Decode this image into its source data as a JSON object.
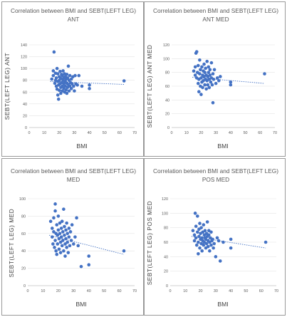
{
  "chart_data": [
    {
      "type": "scatter",
      "title": "Correlation between BMI and SEBT(LEFT LEG)",
      "subtitle": "ANT",
      "xlabel": "BMI",
      "ylabel": "SEBT(LEFT LEG) ANT",
      "xlim": [
        0,
        70
      ],
      "ylim": [
        0,
        140
      ],
      "xticks": [
        0,
        10,
        20,
        30,
        40,
        50,
        60,
        70
      ],
      "yticks": [
        0,
        20,
        40,
        60,
        80,
        100,
        120,
        140
      ],
      "point_color": "#4472c4",
      "trendline": {
        "style": "dotted",
        "x": [
          14,
          63
        ],
        "y": [
          78,
          73
        ]
      },
      "points": [
        [
          15,
          82
        ],
        [
          16,
          88
        ],
        [
          16,
          96
        ],
        [
          16.5,
          128
        ],
        [
          17,
          75
        ],
        [
          17.5,
          80
        ],
        [
          17.5,
          92
        ],
        [
          18,
          70
        ],
        [
          18,
          84
        ],
        [
          18.5,
          100
        ],
        [
          18.5,
          65
        ],
        [
          19,
          78
        ],
        [
          19,
          55
        ],
        [
          19,
          91
        ],
        [
          19.5,
          48
        ],
        [
          19.5,
          72
        ],
        [
          20,
          80
        ],
        [
          20,
          86
        ],
        [
          20,
          63
        ],
        [
          20.5,
          95
        ],
        [
          20.5,
          74
        ],
        [
          21,
          68
        ],
        [
          21,
          83
        ],
        [
          21,
          58
        ],
        [
          21.5,
          90
        ],
        [
          21.5,
          76
        ],
        [
          22,
          70
        ],
        [
          22,
          88
        ],
        [
          22,
          62
        ],
        [
          22.5,
          80
        ],
        [
          22.5,
          96
        ],
        [
          23,
          74
        ],
        [
          23,
          66
        ],
        [
          23,
          84
        ],
        [
          23.5,
          91
        ],
        [
          23.5,
          60
        ],
        [
          24,
          78
        ],
        [
          24,
          86
        ],
        [
          24,
          70
        ],
        [
          24.5,
          64
        ],
        [
          24.5,
          82
        ],
        [
          25,
          75
        ],
        [
          25,
          90
        ],
        [
          25,
          58
        ],
        [
          25.5,
          68
        ],
        [
          25.5,
          84
        ],
        [
          26,
          73
        ],
        [
          26,
          104
        ],
        [
          26.5,
          80
        ],
        [
          26.5,
          62
        ],
        [
          27,
          88
        ],
        [
          27,
          70
        ],
        [
          27.5,
          76
        ],
        [
          28,
          66
        ],
        [
          28,
          82
        ],
        [
          28.5,
          74
        ],
        [
          29,
          86
        ],
        [
          29.5,
          70
        ],
        [
          30,
          62
        ],
        [
          30.5,
          88
        ],
        [
          31,
          74
        ],
        [
          32,
          72
        ],
        [
          33,
          88
        ],
        [
          35,
          70
        ],
        [
          40,
          72
        ],
        [
          40,
          66
        ],
        [
          63,
          79
        ]
      ]
    },
    {
      "type": "scatter",
      "title": "Correlation between BMI and SEBT(LEFT LEG)",
      "subtitle": "ANT MED",
      "xlabel": "BMI",
      "ylabel": "SEBT(LEFT LEG) ANT MED",
      "xlim": [
        0,
        70
      ],
      "ylim": [
        0,
        120
      ],
      "xticks": [
        0,
        10,
        20,
        30,
        40,
        50,
        60,
        70
      ],
      "yticks": [
        0,
        20,
        40,
        60,
        80,
        100,
        120
      ],
      "point_color": "#4472c4",
      "trendline": {
        "style": "dotted",
        "x": [
          14,
          63
        ],
        "y": [
          73,
          64
        ]
      },
      "points": [
        [
          15,
          82
        ],
        [
          16,
          76
        ],
        [
          16,
          88
        ],
        [
          16.5,
          108
        ],
        [
          17,
          72
        ],
        [
          17,
          110
        ],
        [
          17.5,
          80
        ],
        [
          18,
          64
        ],
        [
          18,
          90
        ],
        [
          18.5,
          70
        ],
        [
          18.5,
          52
        ],
        [
          19,
          78
        ],
        [
          19,
          98
        ],
        [
          19.5,
          60
        ],
        [
          19.5,
          84
        ],
        [
          20,
          72
        ],
        [
          20,
          48
        ],
        [
          20.5,
          66
        ],
        [
          20.5,
          88
        ],
        [
          21,
          76
        ],
        [
          21,
          58
        ],
        [
          21.5,
          82
        ],
        [
          21.5,
          68
        ],
        [
          22,
          74
        ],
        [
          22,
          92
        ],
        [
          22.5,
          62
        ],
        [
          22.5,
          80
        ],
        [
          23,
          70
        ],
        [
          23,
          86
        ],
        [
          23.5,
          56
        ],
        [
          23.5,
          76
        ],
        [
          24,
          68
        ],
        [
          24,
          96
        ],
        [
          24.5,
          74
        ],
        [
          24.5,
          62
        ],
        [
          25,
          80
        ],
        [
          25,
          88
        ],
        [
          25.5,
          70
        ],
        [
          25.5,
          58
        ],
        [
          26,
          76
        ],
        [
          26,
          84
        ],
        [
          26.5,
          66
        ],
        [
          27,
          72
        ],
        [
          27,
          94
        ],
        [
          27.5,
          62
        ],
        [
          28,
          36
        ],
        [
          28,
          78
        ],
        [
          28.5,
          70
        ],
        [
          29,
          84
        ],
        [
          30,
          64
        ],
        [
          31,
          72
        ],
        [
          32,
          68
        ],
        [
          33,
          74
        ],
        [
          40,
          66
        ],
        [
          40,
          62
        ],
        [
          63,
          78
        ]
      ]
    },
    {
      "type": "scatter",
      "title": "Correlation between BMI and SEBT(LEFT LEG)",
      "subtitle": "MED",
      "xlabel": "BMI",
      "ylabel": "SEBT(LEFT LEG) MED",
      "xlim": [
        0,
        70
      ],
      "ylim": [
        0,
        100
      ],
      "xticks": [
        0,
        10,
        20,
        30,
        40,
        50,
        60,
        70
      ],
      "yticks": [
        0,
        20,
        40,
        60,
        80,
        100
      ],
      "point_color": "#4472c4",
      "trendline": {
        "style": "dotted",
        "x": [
          14,
          63
        ],
        "y": [
          58,
          36
        ]
      },
      "points": [
        [
          15,
          74
        ],
        [
          16,
          66
        ],
        [
          16,
          56
        ],
        [
          16.5,
          48
        ],
        [
          17,
          62
        ],
        [
          17,
          78
        ],
        [
          17.5,
          44
        ],
        [
          18,
          52
        ],
        [
          18,
          86
        ],
        [
          18,
          94
        ],
        [
          18.5,
          60
        ],
        [
          18.5,
          40
        ],
        [
          19,
          70
        ],
        [
          19,
          36
        ],
        [
          19.5,
          58
        ],
        [
          19.5,
          48
        ],
        [
          20,
          80
        ],
        [
          20,
          64
        ],
        [
          20.5,
          54
        ],
        [
          20.5,
          42
        ],
        [
          21,
          72
        ],
        [
          21,
          60
        ],
        [
          21.5,
          50
        ],
        [
          21.5,
          38
        ],
        [
          22,
          66
        ],
        [
          22,
          56
        ],
        [
          22.5,
          74
        ],
        [
          22.5,
          46
        ],
        [
          23,
          62
        ],
        [
          23,
          52
        ],
        [
          23.5,
          40
        ],
        [
          23.5,
          88
        ],
        [
          24,
          58
        ],
        [
          24,
          68
        ],
        [
          24.5,
          48
        ],
        [
          24.5,
          34
        ],
        [
          25,
          64
        ],
        [
          25,
          54
        ],
        [
          25.5,
          44
        ],
        [
          25.5,
          72
        ],
        [
          26,
          60
        ],
        [
          26,
          50
        ],
        [
          26.5,
          38
        ],
        [
          27,
          56
        ],
        [
          27,
          66
        ],
        [
          27.5,
          46
        ],
        [
          28,
          62
        ],
        [
          28.5,
          52
        ],
        [
          29,
          70
        ],
        [
          30,
          48
        ],
        [
          31,
          56
        ],
        [
          32,
          78
        ],
        [
          33,
          46
        ],
        [
          35,
          22
        ],
        [
          40,
          34
        ],
        [
          40,
          24
        ],
        [
          63,
          40
        ]
      ]
    },
    {
      "type": "scatter",
      "title": "Correlation between BMI and SEBT(LEFT LEG)",
      "subtitle": "POS MED",
      "xlabel": "BMI",
      "ylabel": "SEBT(LEFT LEG) POS MED",
      "xlim": [
        0,
        70
      ],
      "ylim": [
        0,
        120
      ],
      "xticks": [
        0,
        10,
        20,
        30,
        40,
        50,
        60,
        70
      ],
      "yticks": [
        0,
        20,
        40,
        60,
        80,
        100,
        120
      ],
      "point_color": "#4472c4",
      "trendline": {
        "style": "dotted",
        "x": [
          14,
          63
        ],
        "y": [
          68,
          52
        ]
      },
      "points": [
        [
          15,
          76
        ],
        [
          16,
          70
        ],
        [
          16,
          62
        ],
        [
          16.5,
          100
        ],
        [
          17,
          66
        ],
        [
          17,
          82
        ],
        [
          17.5,
          56
        ],
        [
          18,
          96
        ],
        [
          18,
          74
        ],
        [
          18.5,
          60
        ],
        [
          18.5,
          44
        ],
        [
          19,
          78
        ],
        [
          19,
          68
        ],
        [
          19.5,
          52
        ],
        [
          19.5,
          86
        ],
        [
          20,
          64
        ],
        [
          20,
          72
        ],
        [
          20.5,
          58
        ],
        [
          20.5,
          80
        ],
        [
          21,
          66
        ],
        [
          21,
          48
        ],
        [
          21.5,
          74
        ],
        [
          21.5,
          62
        ],
        [
          22,
          56
        ],
        [
          22,
          84
        ],
        [
          22.5,
          70
        ],
        [
          22.5,
          60
        ],
        [
          23,
          66
        ],
        [
          23,
          76
        ],
        [
          23.5,
          52
        ],
        [
          23.5,
          64
        ],
        [
          24,
          72
        ],
        [
          24,
          58
        ],
        [
          24.5,
          68
        ],
        [
          24.5,
          88
        ],
        [
          25,
          62
        ],
        [
          25,
          54
        ],
        [
          25.5,
          70
        ],
        [
          25.5,
          76
        ],
        [
          26,
          60
        ],
        [
          26,
          48
        ],
        [
          26.5,
          66
        ],
        [
          27,
          74
        ],
        [
          27,
          56
        ],
        [
          27.5,
          62
        ],
        [
          28,
          64
        ],
        [
          28.5,
          52
        ],
        [
          29,
          58
        ],
        [
          30,
          40
        ],
        [
          31,
          66
        ],
        [
          32,
          62
        ],
        [
          33,
          34
        ],
        [
          35,
          60
        ],
        [
          40,
          52
        ],
        [
          40,
          64
        ],
        [
          63,
          60
        ]
      ]
    }
  ]
}
